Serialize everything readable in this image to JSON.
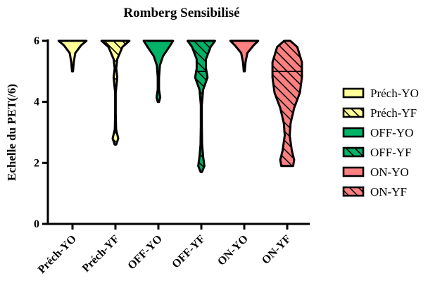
{
  "chart_data": {
    "type": "violin",
    "title": "Romberg Sensibilisé",
    "xlabel": "",
    "ylabel": "Echelle du PET(/6)",
    "ylim": [
      0,
      6
    ],
    "yticks": [
      0,
      2,
      4,
      6
    ],
    "grid": false,
    "legend_position": "right",
    "categories": [
      "Préch-YO",
      "Préch-YF",
      "OFF-YO",
      "OFF-YF",
      "ON-YO",
      "ON-YF"
    ],
    "series": [
      {
        "name": "Préch-YO",
        "color": "#ffff99",
        "pattern": "solid",
        "min": 5,
        "max": 6,
        "median": 6,
        "profile": [
          [
            5.0,
            0.03
          ],
          [
            5.3,
            0.08
          ],
          [
            5.6,
            0.18
          ],
          [
            5.85,
            0.55
          ],
          [
            6.0,
            0.9
          ]
        ]
      },
      {
        "name": "Préch-YF",
        "color": "#ffff99",
        "pattern": "hatched",
        "min": 2.6,
        "max": 6,
        "median": 5,
        "profile": [
          [
            2.6,
            0.05
          ],
          [
            2.8,
            0.18
          ],
          [
            3.1,
            0.04
          ],
          [
            3.6,
            0.02
          ],
          [
            4.3,
            0.02
          ],
          [
            4.8,
            0.12
          ],
          [
            5.1,
            0.05
          ],
          [
            5.4,
            0.12
          ],
          [
            5.8,
            0.45
          ],
          [
            6.0,
            0.9
          ]
        ]
      },
      {
        "name": "OFF-YO",
        "color": "#00b366",
        "pattern": "solid",
        "min": 4,
        "max": 6,
        "median": 6,
        "profile": [
          [
            4.0,
            0.04
          ],
          [
            4.15,
            0.12
          ],
          [
            4.4,
            0.04
          ],
          [
            4.8,
            0.04
          ],
          [
            5.2,
            0.1
          ],
          [
            5.5,
            0.3
          ],
          [
            5.8,
            0.7
          ],
          [
            6.0,
            0.95
          ]
        ]
      },
      {
        "name": "OFF-YF",
        "color": "#00b366",
        "pattern": "hatched",
        "min": 1.7,
        "max": 6,
        "median": 5,
        "profile": [
          [
            1.7,
            0.04
          ],
          [
            1.9,
            0.2
          ],
          [
            2.2,
            0.12
          ],
          [
            2.6,
            0.05
          ],
          [
            3.2,
            0.03
          ],
          [
            3.9,
            0.03
          ],
          [
            4.4,
            0.12
          ],
          [
            4.8,
            0.4
          ],
          [
            5.1,
            0.3
          ],
          [
            5.4,
            0.3
          ],
          [
            5.8,
            0.6
          ],
          [
            6.0,
            0.88
          ]
        ]
      },
      {
        "name": "ON-YO",
        "color": "#ff8080",
        "pattern": "solid",
        "min": 5,
        "max": 6,
        "median": 6,
        "profile": [
          [
            5.0,
            0.03
          ],
          [
            5.3,
            0.08
          ],
          [
            5.6,
            0.2
          ],
          [
            5.85,
            0.6
          ],
          [
            6.0,
            0.9
          ]
        ]
      },
      {
        "name": "ON-YF",
        "color": "#ff8080",
        "pattern": "hatched",
        "min": 1.9,
        "max": 6,
        "median": 5,
        "profile": [
          [
            1.9,
            0.38
          ],
          [
            2.1,
            0.45
          ],
          [
            2.4,
            0.3
          ],
          [
            2.9,
            0.16
          ],
          [
            3.3,
            0.22
          ],
          [
            3.8,
            0.45
          ],
          [
            4.3,
            0.82
          ],
          [
            4.8,
            0.95
          ],
          [
            5.3,
            0.95
          ],
          [
            5.8,
            0.65
          ],
          [
            6.0,
            0.2
          ]
        ]
      }
    ]
  }
}
